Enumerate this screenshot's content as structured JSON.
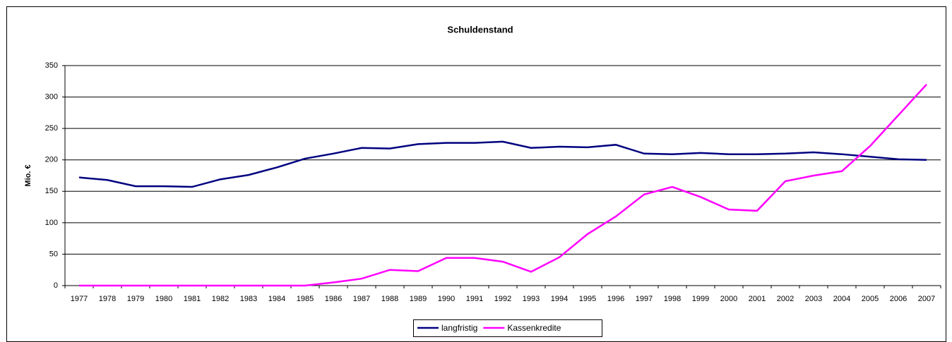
{
  "chart_data": {
    "type": "line",
    "title": "Schuldenstand",
    "y_label": "Mio. €",
    "categories": [
      "1977",
      "1978",
      "1979",
      "1980",
      "1981",
      "1982",
      "1983",
      "1984",
      "1985",
      "1986",
      "1987",
      "1988",
      "1989",
      "1990",
      "1991",
      "1992",
      "1993",
      "1994",
      "1995",
      "1996",
      "1997",
      "1998",
      "1999",
      "2000",
      "2001",
      "2002",
      "2003",
      "2004",
      "2005",
      "2006",
      "2007"
    ],
    "series": [
      {
        "name": "langfristig",
        "color": "#000080",
        "values": [
          172,
          168,
          158,
          158,
          157,
          169,
          176,
          188,
          202,
          210,
          219,
          218,
          225,
          227,
          227,
          229,
          219,
          221,
          220,
          224,
          210,
          209,
          211,
          209,
          209,
          210,
          212,
          209,
          205,
          201,
          200
        ]
      },
      {
        "name": "Kassenkredite",
        "color": "#ff00ff",
        "values": [
          0,
          0,
          0,
          0,
          0,
          0,
          0,
          0,
          0,
          5,
          11,
          25,
          23,
          44,
          44,
          38,
          22,
          45,
          82,
          110,
          145,
          157,
          141,
          121,
          119,
          166,
          175,
          182,
          222,
          271,
          320
        ]
      }
    ],
    "ylim": [
      0,
      350
    ],
    "yticks": [
      0,
      50,
      100,
      150,
      200,
      250,
      300,
      350
    ],
    "grid": true,
    "legend": "bottom"
  }
}
